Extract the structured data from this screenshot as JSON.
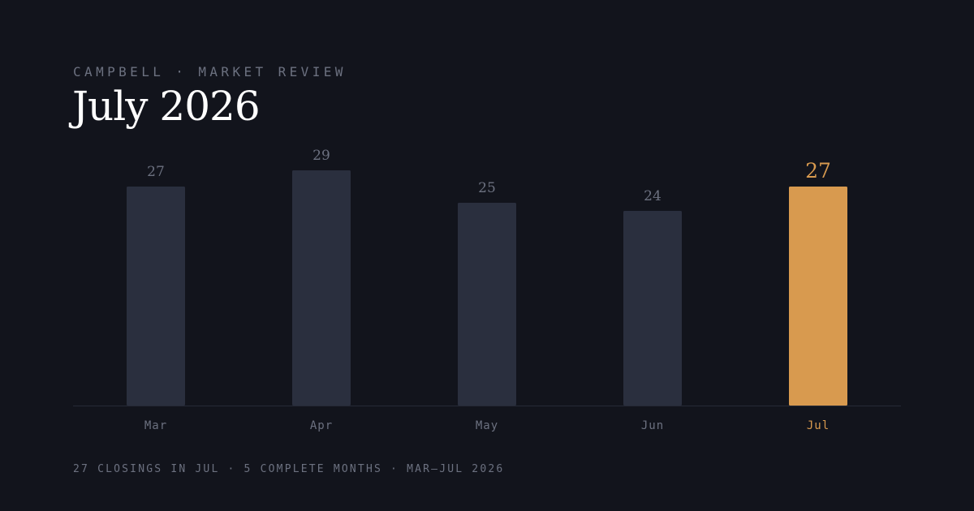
{
  "header": {
    "eyebrow": "CAMPBELL · MARKET REVIEW",
    "title": "July 2026"
  },
  "footer": {
    "note": "27 CLOSINGS IN JUL · 5 COMPLETE MONTHS · MAR–JUL 2026"
  },
  "colors": {
    "background": "#12141c",
    "bar": "#2a2f3e",
    "highlight": "#d89a4f",
    "label": "#6c7180",
    "baseline": "#262a36"
  },
  "chart_data": {
    "type": "bar",
    "categories": [
      "Mar",
      "Apr",
      "May",
      "Jun",
      "Jul"
    ],
    "values": [
      27,
      29,
      25,
      24,
      27
    ],
    "highlight_category": "Jul",
    "ylim": [
      0,
      29
    ],
    "grid": false,
    "legend": "none"
  }
}
